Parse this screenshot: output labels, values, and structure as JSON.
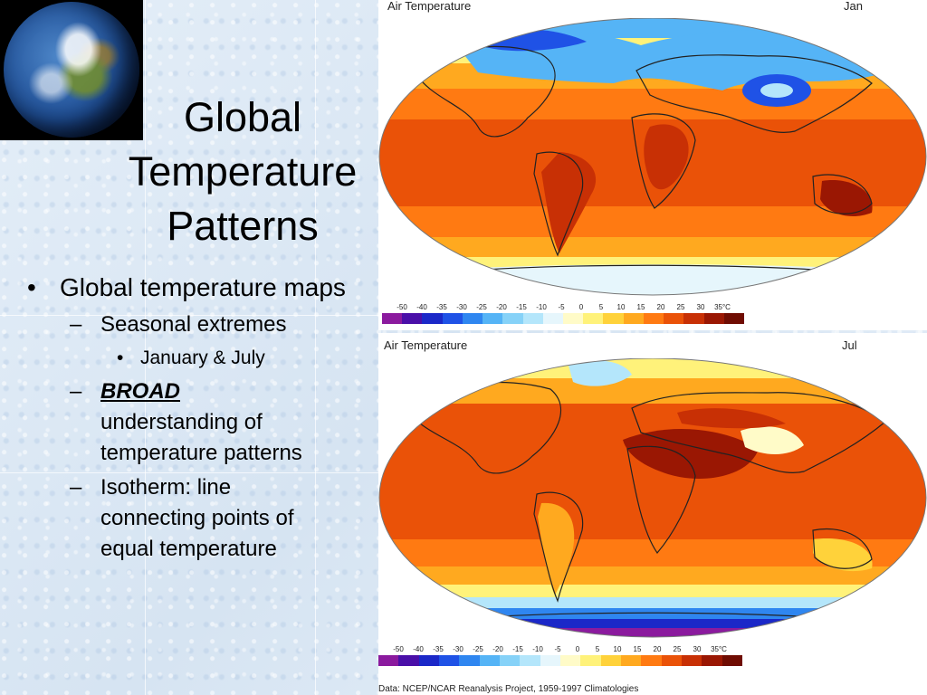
{
  "slide": {
    "title_lines": [
      "Global",
      "Temperature",
      "Patterns"
    ],
    "bullets": {
      "b1": "Global temperature maps",
      "sub1": "Seasonal extremes",
      "subsub1": "January & July",
      "sub2_bold": "BROAD",
      "sub2_rest": "understanding of temperature patterns",
      "sub3": "Isotherm: line connecting points of equal temperature"
    },
    "bullet_marks": {
      "level1": "•",
      "level2": "–",
      "level3": "•"
    }
  },
  "maps": {
    "jan": {
      "title": "Air Temperature",
      "month": "Jan"
    },
    "jul": {
      "title": "Air Temperature",
      "month": "Jul"
    },
    "legend_ticks": [
      "-50",
      "-40",
      "-35",
      "-30",
      "-25",
      "-20",
      "-15",
      "-10",
      "-5",
      "0",
      "5",
      "10",
      "15",
      "20",
      "25",
      "30",
      "35°C"
    ],
    "legend_colors": [
      "#8b1a9e",
      "#4a0fa8",
      "#1b28c8",
      "#1f52e6",
      "#2f86f0",
      "#55b4f6",
      "#86d2f8",
      "#b4e6fb",
      "#e6f6fc",
      "#fffbc8",
      "#fff27a",
      "#ffd23a",
      "#ffa91f",
      "#ff7a12",
      "#ea5208",
      "#c83005",
      "#9a1703",
      "#6f0c02"
    ],
    "source": "Data: NCEP/NCAR Reanalysis Project, 1959-1997 Climatologies"
  },
  "icons": {
    "earth": "earth-globe-photo"
  }
}
